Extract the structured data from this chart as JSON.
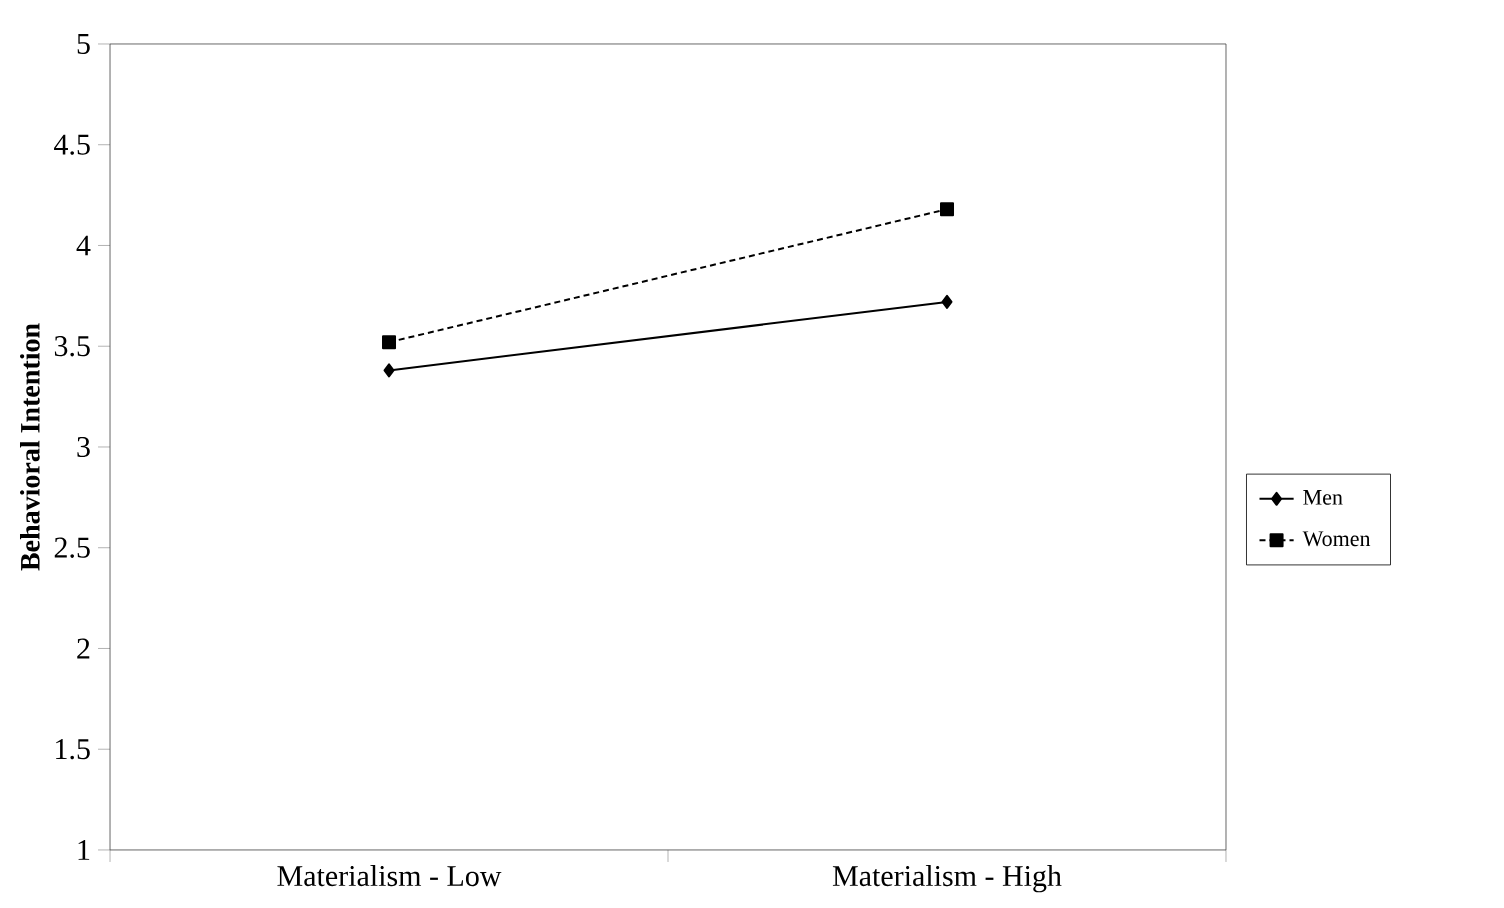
{
  "chart_data": {
    "type": "line",
    "ylabel": "Behavioral Intention",
    "categories": [
      "Materialism - Low",
      "Materialism - High"
    ],
    "series": [
      {
        "name": "Men",
        "color": "#000000",
        "values": [
          3.38,
          3.72
        ],
        "marker": "diamond",
        "line_style": "solid"
      },
      {
        "name": "Women",
        "color": "#000000",
        "values": [
          3.52,
          4.18
        ],
        "marker": "square",
        "line_style": "dashed"
      }
    ],
    "ylim": [
      1,
      5
    ],
    "yticks": [
      1,
      1.5,
      2,
      2.5,
      3,
      3.5,
      4,
      4.5,
      5
    ],
    "legend": "right"
  }
}
